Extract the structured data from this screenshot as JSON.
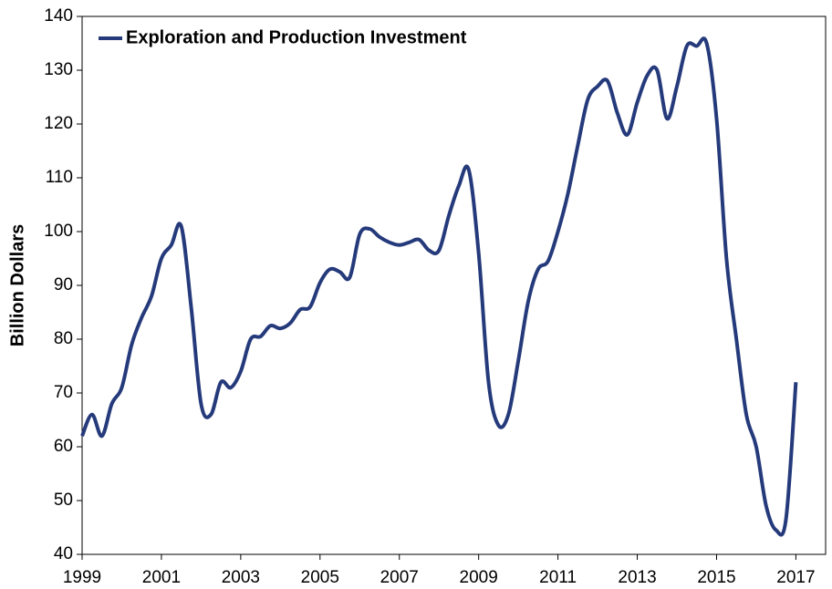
{
  "chart_data": {
    "type": "line",
    "y_label": "Billion Dollars",
    "x": [
      1999,
      1999.25,
      1999.5,
      1999.75,
      2000,
      2000.25,
      2000.5,
      2000.75,
      2001,
      2001.25,
      2001.5,
      2001.75,
      2002,
      2002.25,
      2002.5,
      2002.75,
      2003,
      2003.25,
      2003.5,
      2003.75,
      2004,
      2004.25,
      2004.5,
      2004.75,
      2005,
      2005.25,
      2005.5,
      2005.75,
      2006,
      2006.25,
      2006.5,
      2006.75,
      2007,
      2007.25,
      2007.5,
      2007.75,
      2008,
      2008.25,
      2008.5,
      2008.75,
      2009,
      2009.25,
      2009.5,
      2009.75,
      2010,
      2010.25,
      2010.5,
      2010.75,
      2011,
      2011.25,
      2011.5,
      2011.75,
      2012,
      2012.25,
      2012.5,
      2012.75,
      2013,
      2013.25,
      2013.5,
      2013.75,
      2014,
      2014.25,
      2014.5,
      2014.75,
      2015,
      2015.25,
      2015.5,
      2015.75,
      2016,
      2016.25,
      2016.5,
      2016.75,
      2017
    ],
    "series": [
      {
        "name": "Exploration and Production Investment",
        "color": "#253a7b",
        "values": [
          62,
          66,
          62,
          68,
          71,
          79,
          84,
          88,
          95,
          97.5,
          101,
          86,
          68,
          66,
          72,
          71,
          74,
          80,
          80.5,
          82.5,
          82,
          83,
          85.5,
          86,
          90.5,
          93,
          92.5,
          91.5,
          99.5,
          100.5,
          99,
          98,
          97.5,
          98,
          98.5,
          96.5,
          96.5,
          103,
          108.5,
          111.5,
          96,
          72,
          64,
          66,
          76,
          87,
          93,
          94.5,
          100,
          107,
          116,
          124.5,
          127,
          128,
          122,
          118,
          124,
          129,
          130,
          121,
          127,
          134.5,
          134.5,
          135,
          121,
          95,
          80,
          66,
          60,
          49,
          44.5,
          46.5,
          72
        ]
      }
    ],
    "xlim": [
      1999,
      2017.75
    ],
    "xticks": [
      1999,
      2001,
      2003,
      2005,
      2007,
      2009,
      2011,
      2013,
      2015,
      2017
    ],
    "ylim": [
      40,
      140
    ],
    "yticks": [
      40,
      50,
      60,
      70,
      80,
      90,
      100,
      110,
      120,
      130,
      140
    ],
    "grid": false,
    "legend": "upper left"
  }
}
